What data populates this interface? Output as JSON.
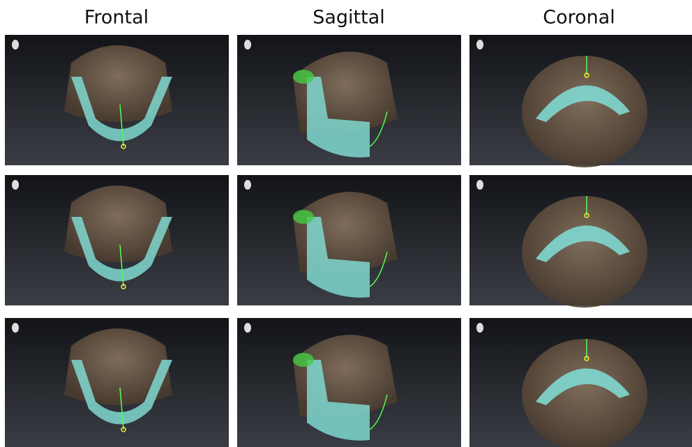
{
  "columns": [
    "Frontal",
    "Sagittal",
    "Coronal"
  ]
}
